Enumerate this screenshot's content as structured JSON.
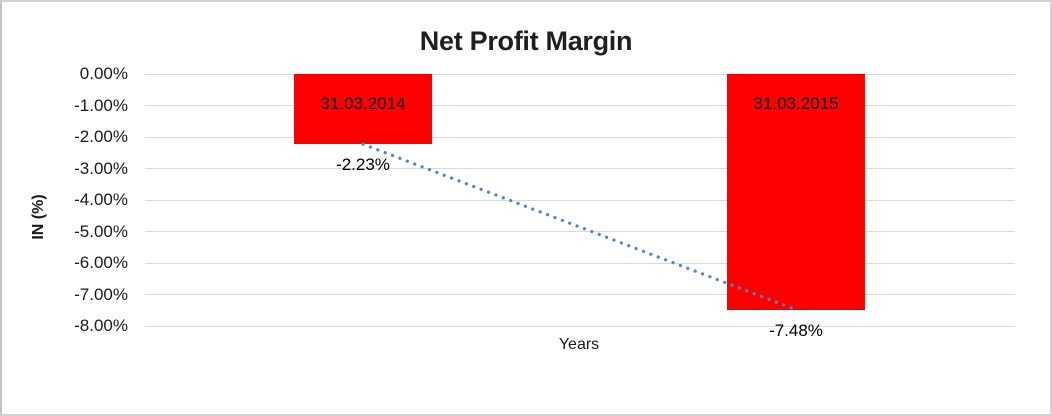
{
  "window": {
    "background": "#FFFFFF",
    "border_color": "#D2D2D2"
  },
  "chart_data": {
    "type": "bar",
    "title": "Net Profit Margin",
    "xlabel": "Years",
    "ylabel": "IN (%)",
    "categories": [
      "31.03.2014",
      "31.03.2015"
    ],
    "values": [
      -2.23,
      -7.48
    ],
    "data_labels": [
      "-2.23%",
      "-7.48%"
    ],
    "ylim": [
      -8,
      0
    ],
    "y_tick_values": [
      0,
      -1,
      -2,
      -3,
      -4,
      -5,
      -6,
      -7,
      -8
    ],
    "y_tick_labels": [
      "0.00%",
      "-1.00%",
      "-2.00%",
      "-3.00%",
      "-4.00%",
      "-5.00%",
      "-6.00%",
      "-7.00%",
      "-8.00%"
    ],
    "grid": true,
    "legend": "none",
    "bar_color": "#FF0000",
    "gridline_color": "#D9D9D9",
    "text_color": "#1A1A1A",
    "trendline": {
      "type": "linear",
      "style": "dotted",
      "color": "#4E86C8",
      "from": {
        "category": "31.03.2014",
        "value": -2.23
      },
      "to": {
        "category": "31.03.2015",
        "value": -7.48
      }
    }
  }
}
